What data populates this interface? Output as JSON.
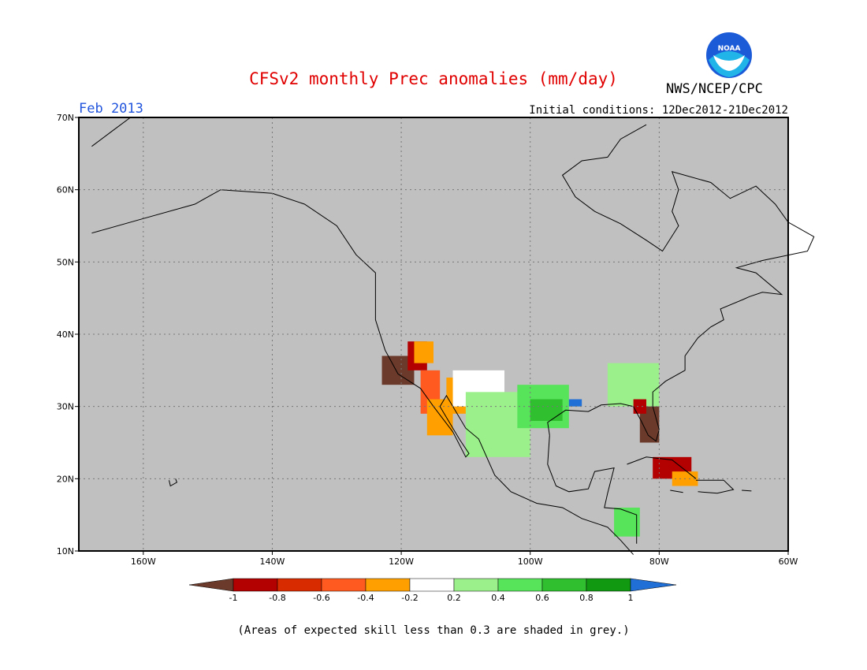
{
  "header": {
    "title": "CFSv2 monthly Prec anomalies (mm/day)",
    "month": "Feb 2013",
    "initial_conditions": "Initial conditions: 12Dec2012-21Dec2012",
    "agency": "NWS/NCEP/CPC",
    "logo_text": "NOAA"
  },
  "footnote": "(Areas of expected skill less than 0.3 are shaded in grey.)",
  "colors": {
    "background": "#c0c0c0",
    "land_outline": "#000000",
    "skill_white": "#ffffff"
  },
  "chart_data": {
    "type": "heatmap",
    "xlim": [
      -170,
      -60
    ],
    "ylim": [
      10,
      70
    ],
    "x_ticks": [
      {
        "value": -160,
        "label": "160W"
      },
      {
        "value": -140,
        "label": "140W"
      },
      {
        "value": -120,
        "label": "120W"
      },
      {
        "value": -100,
        "label": "100W"
      },
      {
        "value": -80,
        "label": "80W"
      },
      {
        "value": -60,
        "label": "60W"
      }
    ],
    "y_ticks": [
      {
        "value": 10,
        "label": "10N"
      },
      {
        "value": 20,
        "label": "20N"
      },
      {
        "value": 30,
        "label": "30N"
      },
      {
        "value": 40,
        "label": "40N"
      },
      {
        "value": 50,
        "label": "50N"
      },
      {
        "value": 60,
        "label": "60N"
      },
      {
        "value": 70,
        "label": "70N"
      }
    ],
    "grid": true,
    "colorbar": {
      "labels": [
        "-1",
        "-0.8",
        "-0.6",
        "-0.4",
        "-0.2",
        "0.2",
        "0.4",
        "0.6",
        "0.8",
        "1"
      ],
      "under_color": "#6b3a2a",
      "over_color": "#1f6fd6",
      "bins": [
        {
          "from": -1,
          "to": -0.8,
          "color": "#b30000"
        },
        {
          "from": -0.8,
          "to": -0.6,
          "color": "#d92b00"
        },
        {
          "from": -0.6,
          "to": -0.4,
          "color": "#ff5a1f"
        },
        {
          "from": -0.4,
          "to": -0.2,
          "color": "#ffa000"
        },
        {
          "from": -0.2,
          "to": 0.2,
          "color": "#ffffff"
        },
        {
          "from": 0.2,
          "to": 0.4,
          "color": "#9cf08c"
        },
        {
          "from": 0.4,
          "to": 0.6,
          "color": "#57e35a"
        },
        {
          "from": 0.6,
          "to": 0.8,
          "color": "#2fbf2f"
        },
        {
          "from": 0.8,
          "to": 1,
          "color": "#129912"
        }
      ]
    },
    "regions": [
      {
        "lon": [
          -123,
          -118
        ],
        "lat": [
          33,
          37
        ],
        "value": -1.1
      },
      {
        "lon": [
          -119,
          -116
        ],
        "lat": [
          35,
          39
        ],
        "value": -0.9
      },
      {
        "lon": [
          -117,
          -114
        ],
        "lat": [
          29,
          35
        ],
        "value": -0.5
      },
      {
        "lon": [
          -116,
          -112
        ],
        "lat": [
          26,
          31
        ],
        "value": -0.3
      },
      {
        "lon": [
          -113,
          -109
        ],
        "lat": [
          29,
          34
        ],
        "value": -0.3
      },
      {
        "lon": [
          -118,
          -115
        ],
        "lat": [
          36,
          39
        ],
        "value": -0.3
      },
      {
        "lon": [
          -112,
          -104
        ],
        "lat": [
          30,
          35
        ],
        "value": 0.0
      },
      {
        "lon": [
          -110,
          -100
        ],
        "lat": [
          23,
          32
        ],
        "value": 0.3
      },
      {
        "lon": [
          -102,
          -94
        ],
        "lat": [
          27,
          33
        ],
        "value": 0.5
      },
      {
        "lon": [
          -100,
          -95
        ],
        "lat": [
          28,
          31
        ],
        "value": 0.7
      },
      {
        "lon": [
          -88,
          -80
        ],
        "lat": [
          30,
          36
        ],
        "value": 0.3
      },
      {
        "lon": [
          -83,
          -80
        ],
        "lat": [
          25,
          30
        ],
        "value": -1.1
      },
      {
        "lon": [
          -84,
          -82
        ],
        "lat": [
          29,
          31
        ],
        "value": -0.9
      },
      {
        "lon": [
          -81,
          -75
        ],
        "lat": [
          20,
          23
        ],
        "value": -0.9
      },
      {
        "lon": [
          -78,
          -74
        ],
        "lat": [
          19,
          21
        ],
        "value": -0.3
      },
      {
        "lon": [
          -87,
          -83
        ],
        "lat": [
          12,
          16
        ],
        "value": 0.5
      },
      {
        "lon": [
          -94,
          -92
        ],
        "lat": [
          30,
          31
        ],
        "value": 1.1
      }
    ]
  }
}
